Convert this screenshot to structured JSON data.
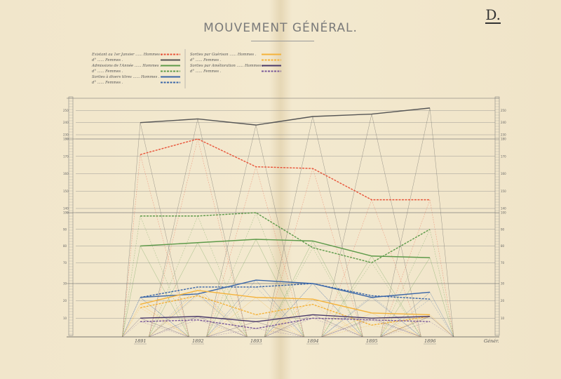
{
  "corner_letter": "D.",
  "title": "MOUVEMENT GÉNÉRAL.",
  "legend": {
    "left": [
      {
        "label": "Existant au 1er Janvier",
        "sex": "Hommes",
        "color": "#e8543a",
        "style": "dotted"
      },
      {
        "label": "d°",
        "sex": "Femmes",
        "color": "#555555",
        "style": "solid"
      },
      {
        "label": "Admissions de l'Année",
        "sex": "Hommes",
        "color": "#5e9a4a",
        "style": "solid"
      },
      {
        "label": "d°",
        "sex": "Femmes",
        "color": "#5e9a4a",
        "style": "dotted"
      },
      {
        "label": "Sorties à divers titres",
        "sex": "Hommes",
        "color": "#3a66a8",
        "style": "solid"
      },
      {
        "label": "d°",
        "sex": "Femmes",
        "color": "#3a66a8",
        "style": "dotted"
      }
    ],
    "right": [
      {
        "label": "Sorties par Guérison",
        "sex": "Hommes",
        "color": "#f4b23a",
        "style": "solid"
      },
      {
        "label": "d°",
        "sex": "Femmes",
        "color": "#f4b23a",
        "style": "dotted"
      },
      {
        "label": "Sorties par Amélioration",
        "sex": "Hommes",
        "color": "#4a3a6a",
        "style": "solid"
      },
      {
        "label": "d°",
        "sex": "Femmes",
        "color": "#7a5a9a",
        "style": "dotted"
      }
    ]
  },
  "footer_label": "Génér.",
  "chart_data": {
    "type": "line",
    "title": "MOUVEMENT GÉNÉRAL.",
    "x": [
      "1891",
      "1892",
      "1893",
      "1894",
      "1895",
      "1896"
    ],
    "panels": [
      {
        "name": "Existant au 1er Janvier — Femmes",
        "axis_ticks_left": [
          "250",
          "240",
          "230"
        ],
        "axis_ticks_right": [
          "250",
          "240",
          "230"
        ],
        "ylim": [
          230,
          260
        ],
        "series": [
          {
            "name": "d° Femmes",
            "color": "#555555",
            "style": "solid",
            "values": [
              240,
              243,
              238,
              245,
              247,
              252
            ]
          }
        ]
      },
      {
        "name": "Existant au 1er Janvier — Hommes",
        "axis_ticks_left": [
          "180",
          "170",
          "160",
          "150",
          "140"
        ],
        "axis_ticks_right": [
          "180",
          "170",
          "160",
          "150",
          "140"
        ],
        "ylim": [
          140,
          180
        ],
        "series": [
          {
            "name": "Existant au 1er Janvier Hommes",
            "color": "#e8543a",
            "style": "dotted",
            "values": [
              171,
              180,
              164,
              163,
              145,
              145
            ]
          }
        ]
      },
      {
        "name": "Admissions de l'Année",
        "axis_ticks_left": [
          "100",
          "90",
          "80",
          "70"
        ],
        "axis_ticks_right": [
          "100",
          "90",
          "80",
          "70"
        ],
        "ylim": [
          60,
          100
        ],
        "series": [
          {
            "name": "Admissions de l'Année Hommes",
            "color": "#5e9a4a",
            "style": "solid",
            "values": [
              80,
              82,
              84,
              83,
              74,
              73
            ]
          },
          {
            "name": "d° Femmes",
            "color": "#5e9a4a",
            "style": "dotted",
            "values": [
              98,
              98,
              100,
              79,
              70,
              90
            ]
          }
        ]
      },
      {
        "name": "Sorties",
        "axis_ticks_left": [
          "30",
          "20",
          "10"
        ],
        "axis_ticks_right": [
          "30",
          "20",
          "10"
        ],
        "ylim": [
          0,
          30
        ],
        "series": [
          {
            "name": "Sorties à divers titres Hommes",
            "color": "#3a66a8",
            "style": "solid",
            "values": [
              22,
              24,
              32,
              30,
              22,
              25
            ]
          },
          {
            "name": "d° Femmes",
            "color": "#3a66a8",
            "style": "dotted",
            "values": [
              22,
              28,
              28,
              30,
              23,
              21
            ]
          },
          {
            "name": "Sorties par Guérison Hommes",
            "color": "#f4b23a",
            "style": "solid",
            "values": [
              18,
              26,
              22,
              21,
              13,
              12
            ]
          },
          {
            "name": "d° Femmes",
            "color": "#f4b23a",
            "style": "dotted",
            "values": [
              16,
              23,
              12,
              18,
              6,
              11
            ]
          },
          {
            "name": "Sorties par Amélioration Hommes",
            "color": "#4a3a6a",
            "style": "solid",
            "values": [
              10,
              11,
              8,
              12,
              10,
              11
            ]
          },
          {
            "name": "d° Femmes",
            "color": "#7a5a9a",
            "style": "dotted",
            "values": [
              8,
              9,
              4,
              10,
              9,
              8
            ]
          }
        ]
      }
    ]
  }
}
